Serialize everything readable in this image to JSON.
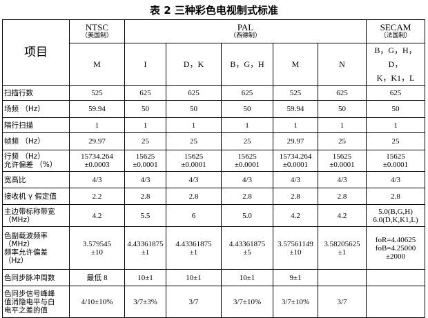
{
  "title": "表 2  三种彩色电视制式标准",
  "table": {
    "item_header": "项目",
    "groups": [
      {
        "name": "NTSC",
        "note": "（美国制）"
      },
      {
        "name": "PAL",
        "note": "（西德制）"
      },
      {
        "name": "SECAM",
        "note": "（法国制）"
      }
    ],
    "systems": [
      [
        "M"
      ],
      [
        "I"
      ],
      [
        "D，K"
      ],
      [
        "B，G，H"
      ],
      [
        "M"
      ],
      [
        "N"
      ],
      [
        "B，G，H，D，",
        "K，K1，L"
      ]
    ],
    "rows": [
      {
        "label": [
          "扫描行数"
        ],
        "cells": [
          [
            "525"
          ],
          [
            "625"
          ],
          [
            "625"
          ],
          [
            "625"
          ],
          [
            "525"
          ],
          [
            "625"
          ],
          [
            "625"
          ]
        ]
      },
      {
        "label": [
          "场频  （Hz）"
        ],
        "cells": [
          [
            "59.94"
          ],
          [
            "50"
          ],
          [
            "50"
          ],
          [
            "50"
          ],
          [
            "59.94"
          ],
          [
            "50"
          ],
          [
            "50"
          ]
        ]
      },
      {
        "label": [
          "隔行扫描"
        ],
        "cells": [
          [
            "1"
          ],
          [
            "1"
          ],
          [
            "1"
          ],
          [
            "1"
          ],
          [
            "1"
          ],
          [
            "1"
          ],
          [
            "1"
          ]
        ]
      },
      {
        "label": [
          "帧频  （Hz）"
        ],
        "cells": [
          [
            "29.97"
          ],
          [
            "25"
          ],
          [
            "25"
          ],
          [
            "25"
          ],
          [
            "29.97"
          ],
          [
            "25"
          ],
          [
            "25"
          ]
        ]
      },
      {
        "label": [
          "行频  （Hz）",
          "允许偏差  （%）"
        ],
        "cells": [
          [
            "15734.264",
            "±0.0003"
          ],
          [
            "15625",
            "±0.0001"
          ],
          [
            "15625",
            "±0.0001"
          ],
          [
            "15625",
            "±0.0001"
          ],
          [
            "15734.264",
            "±0.0001"
          ],
          [
            "15625",
            "±0.0001"
          ],
          [
            "15625",
            "±0.0001"
          ]
        ]
      },
      {
        "label": [
          "宽高比"
        ],
        "cells": [
          [
            "4/3"
          ],
          [
            "4/3"
          ],
          [
            "4/3"
          ],
          [
            "4/3"
          ],
          [
            "4/3"
          ],
          [
            "4/3"
          ],
          [
            "4/3"
          ]
        ]
      },
      {
        "label": [
          "接收机 γ 假定值"
        ],
        "cells": [
          [
            "2.2"
          ],
          [
            "2.8"
          ],
          [
            "2.8"
          ],
          [
            "2.8"
          ],
          [
            "2.8"
          ],
          [
            "2.8"
          ],
          [
            "2.8"
          ]
        ]
      },
      {
        "label": [
          "主边带标称带宽",
          "（MHz）"
        ],
        "cells": [
          [
            "4.2"
          ],
          [
            "5.5"
          ],
          [
            "6"
          ],
          [
            "5.0"
          ],
          [
            "4.2"
          ],
          [
            "4.2"
          ],
          [
            "5.0(B,G,H)",
            "6.0(D,K,K1,L)"
          ]
        ]
      },
      {
        "label": [
          "色副载波频率",
          "（MHz）",
          "频率允许偏差",
          "（Hz）"
        ],
        "cells": [
          [
            "3.579545",
            "±10"
          ],
          [
            "4.43361875",
            "±1"
          ],
          [
            "4.43361875",
            "±1"
          ],
          [
            "4.43361875",
            "±5"
          ],
          [
            "3.57561149",
            "±10"
          ],
          [
            "3.58205625",
            "±1"
          ],
          [
            "foR=4.40625",
            "foB=4.25000",
            "±2000"
          ]
        ]
      },
      {
        "label": [
          "色同步脉冲周数"
        ],
        "cells": [
          [
            "最低 8"
          ],
          [
            "10±1"
          ],
          [
            "10±1"
          ],
          [
            "10±1"
          ],
          [
            "9±1"
          ],
          [],
          []
        ]
      },
      {
        "label": [
          "色同步信号峰峰",
          "值消隐电平与白",
          "电平之差的值"
        ],
        "cells": [
          [
            "4/10±10%"
          ],
          [
            "3/7±3%"
          ],
          [
            "3/7"
          ],
          [
            "3/7±10%"
          ],
          [
            "3/7±10%"
          ],
          [
            "3/7"
          ],
          []
        ]
      }
    ]
  }
}
